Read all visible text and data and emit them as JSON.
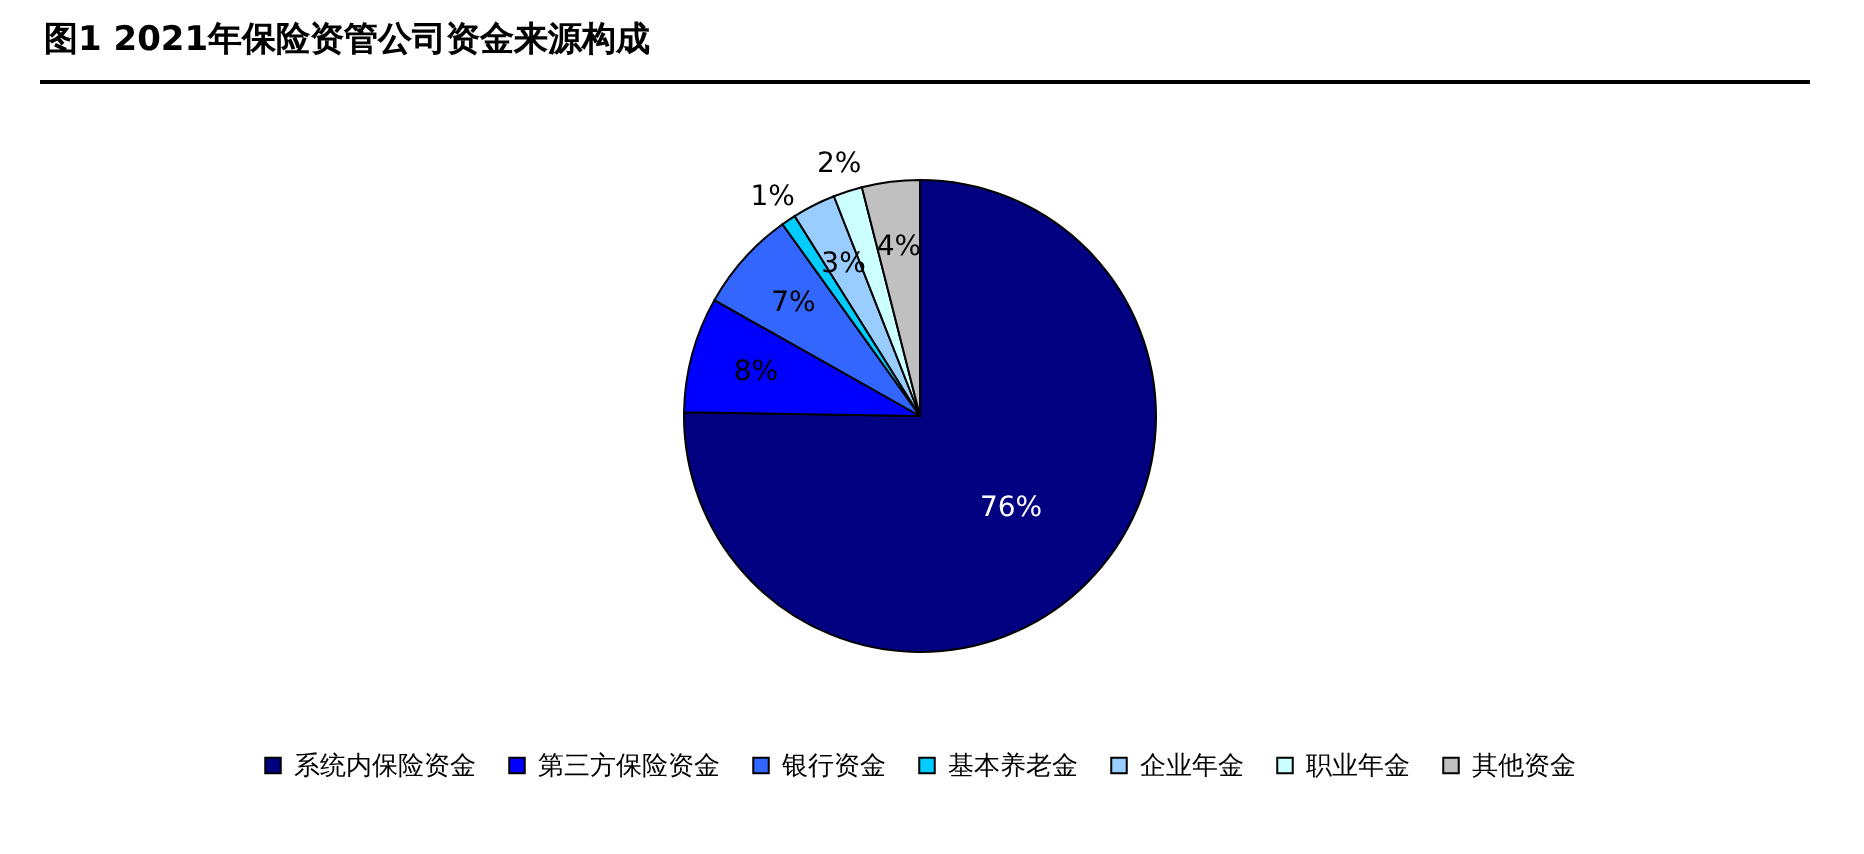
{
  "chart_data": {
    "type": "pie",
    "title": "图1  2021年保险资管公司资金来源构成",
    "categories": [
      "系统内保险资金",
      "第三方保险资金",
      "银行资金",
      "基本养老金",
      "企业年金",
      "职业年金",
      "其他资金"
    ],
    "values": [
      76,
      8,
      7,
      1,
      3,
      2,
      4
    ],
    "colors": [
      "#000080",
      "#0000ff",
      "#3366ff",
      "#00ccff",
      "#99ccff",
      "#ccffff",
      "#c0c0c0"
    ],
    "value_labels": [
      "76%",
      "8%",
      "7%",
      "1%",
      "3%",
      "2%",
      "4%"
    ],
    "legend": "bottom"
  }
}
